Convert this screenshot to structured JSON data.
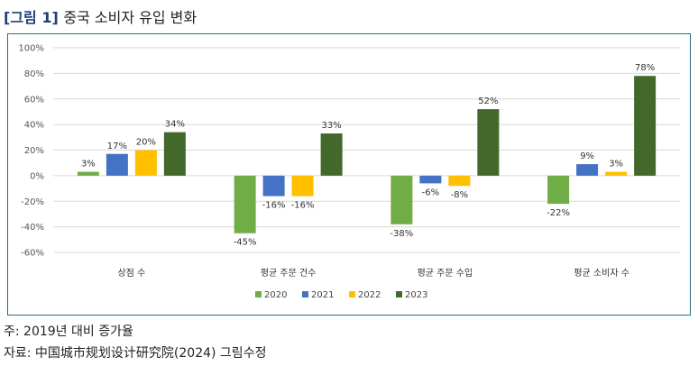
{
  "figure": {
    "title_tag": "[그림 1]",
    "title_text": "중국 소비자 유입 변화",
    "note": "주: 2019년 대비 증가율",
    "source": "자료: 中国城市规划设计研究院(2024) 그림수정"
  },
  "chart_data": {
    "type": "bar",
    "title": "",
    "xlabel": "",
    "ylabel": "",
    "ylim": [
      -60,
      100
    ],
    "yticks": [
      -60,
      -40,
      -20,
      0,
      20,
      40,
      60,
      80,
      100
    ],
    "ytick_labels": [
      "-60%",
      "-40%",
      "-20%",
      "0%",
      "20%",
      "40%",
      "60%",
      "80%",
      "100%"
    ],
    "grid": true,
    "legend_position": "bottom",
    "categories": [
      "상점 수",
      "평균 주문 건수",
      "평균 주문 수입",
      "평균 소비자 수"
    ],
    "series": [
      {
        "name": "2020",
        "color": "#70ad47",
        "values": [
          3,
          -45,
          -38,
          -22
        ],
        "labels": [
          "3%",
          "-45%",
          "-38%",
          "-22%"
        ]
      },
      {
        "name": "2021",
        "color": "#4472c4",
        "values": [
          17,
          -16,
          -6,
          9
        ],
        "labels": [
          "17%",
          "-16%",
          "-6%",
          "9%"
        ]
      },
      {
        "name": "2022",
        "color": "#ffc000",
        "values": [
          20,
          -16,
          -8,
          3
        ],
        "labels": [
          "20%",
          "-16%",
          "-8%",
          "3%"
        ]
      },
      {
        "name": "2023",
        "color": "#43682b",
        "values": [
          34,
          33,
          52,
          78
        ],
        "labels": [
          "34%",
          "33%",
          "52%",
          "78%"
        ]
      }
    ]
  }
}
